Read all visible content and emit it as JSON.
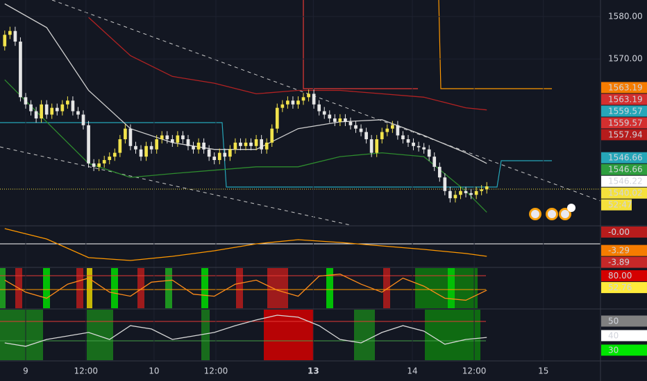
{
  "chart_data": [
    {
      "type": "candlestick",
      "x": [
        -4,
        -3,
        -2,
        -1,
        0,
        1,
        2,
        3,
        4,
        5,
        6,
        7,
        8,
        9,
        10,
        11,
        12,
        13,
        14,
        15,
        16,
        17,
        18,
        19,
        20,
        21,
        22,
        23,
        24,
        25,
        26,
        27,
        28,
        29,
        30,
        31,
        32,
        33,
        34,
        35,
        36,
        37,
        38,
        39,
        40,
        41,
        42,
        43,
        44,
        45,
        46,
        47,
        48,
        49,
        50,
        51,
        52,
        53,
        54,
        55,
        56,
        57,
        58,
        59,
        60,
        61,
        62,
        63,
        64,
        65,
        66,
        67,
        68,
        69,
        70,
        71,
        72,
        73,
        74,
        75,
        76,
        77,
        78,
        79,
        80,
        81,
        82,
        83,
        84,
        85,
        86,
        87,
        88
      ],
      "open": [
        1573,
        1575.7,
        1576.6,
        1574.1,
        1561,
        1559.3,
        1557.7,
        1556,
        1559.3,
        1556.9,
        1558.5,
        1557.7,
        1559.3,
        1560.2,
        1557.7,
        1556.9,
        1554.4,
        1545.4,
        1544.6,
        1545.4,
        1546.2,
        1547,
        1547.9,
        1551.1,
        1553.6,
        1549.5,
        1548.7,
        1547,
        1549.5,
        1548.7,
        1551.1,
        1552,
        1551.1,
        1550.3,
        1552,
        1551.1,
        1549.5,
        1548.7,
        1550.3,
        1548.7,
        1547,
        1546.2,
        1547.9,
        1547,
        1548.7,
        1550.3,
        1549.5,
        1550.3,
        1549.5,
        1551.1,
        1548.7,
        1550.3,
        1553.6,
        1558.5,
        1559.3,
        1560.2,
        1559.3,
        1560.2,
        1561,
        1561.8,
        1559.3,
        1557.7,
        1556.9,
        1556,
        1555.2,
        1556,
        1555.2,
        1554.4,
        1553.6,
        1552.8,
        1551.1,
        1547.9,
        1551.1,
        1552.8,
        1553.6,
        1554.4,
        1552,
        1551.1,
        1550.3,
        1549.5,
        1549.2,
        1548.7,
        1547,
        1544.6,
        1542.1,
        1538.9,
        1537.2,
        1538,
        1538.9,
        1538.4,
        1538,
        1538.9,
        1539.3
      ],
      "high": [
        1576.7,
        1577.6,
        1577.6,
        1575.1,
        1562,
        1560.3,
        1558.7,
        1560.3,
        1560.3,
        1559.5,
        1559.5,
        1560.3,
        1561.2,
        1561.2,
        1558.7,
        1557.9,
        1555.4,
        1546.4,
        1546.4,
        1547.2,
        1548,
        1548.9,
        1552.1,
        1554.6,
        1554.6,
        1550.5,
        1549.7,
        1550.5,
        1550.5,
        1552.1,
        1553,
        1553,
        1552.1,
        1553,
        1553,
        1552.1,
        1550.5,
        1551.3,
        1551.3,
        1549.7,
        1548,
        1548.9,
        1548.9,
        1549.7,
        1551.3,
        1551.3,
        1551.3,
        1551.3,
        1552.1,
        1552.1,
        1551.3,
        1554.6,
        1559.5,
        1560.3,
        1561.2,
        1561.2,
        1561.2,
        1562,
        1562.8,
        1562.8,
        1560.3,
        1558.7,
        1557.9,
        1557,
        1557,
        1557,
        1556.2,
        1555.4,
        1554.6,
        1553.8,
        1552.1,
        1552.1,
        1553.8,
        1554.6,
        1555.4,
        1555.4,
        1553,
        1552.1,
        1551.3,
        1550.5,
        1550.2,
        1549.7,
        1548,
        1545.6,
        1543.1,
        1539.9,
        1539,
        1539.9,
        1539.9,
        1539.4,
        1539.9,
        1540.3,
        1541
      ],
      "low": [
        1572,
        1574.7,
        1573.1,
        1560,
        1558.3,
        1556.7,
        1555,
        1555,
        1555.9,
        1555.9,
        1556.7,
        1556.7,
        1558.3,
        1556.7,
        1555.9,
        1553.4,
        1544.4,
        1543.6,
        1543.6,
        1544.4,
        1545.2,
        1546,
        1546.9,
        1550.1,
        1548.5,
        1547.7,
        1546,
        1546,
        1547.7,
        1547.7,
        1550.1,
        1550.1,
        1549.3,
        1549.3,
        1550.1,
        1548.5,
        1547.7,
        1547.7,
        1547.7,
        1546,
        1545.2,
        1545.2,
        1546,
        1546,
        1547.7,
        1548.5,
        1548.5,
        1548.5,
        1548.5,
        1547.7,
        1547.7,
        1549.3,
        1552.6,
        1557.5,
        1558.3,
        1558.3,
        1558.3,
        1559.2,
        1560,
        1558.3,
        1556.7,
        1555.9,
        1555,
        1554.2,
        1554.2,
        1554.2,
        1553.4,
        1552.6,
        1551.8,
        1550.1,
        1546.9,
        1546.9,
        1550.1,
        1551.8,
        1552.6,
        1551,
        1550.1,
        1549.3,
        1548.5,
        1548.2,
        1547.7,
        1546,
        1543.6,
        1541.1,
        1537.9,
        1536.2,
        1536.2,
        1537,
        1537.4,
        1537,
        1537,
        1537.9,
        1538.3
      ],
      "close": [
        1575.7,
        1576.6,
        1574.1,
        1561,
        1559.3,
        1557.7,
        1556,
        1559.3,
        1556.9,
        1558.5,
        1557.7,
        1559.3,
        1560.2,
        1557.7,
        1556.9,
        1554.4,
        1545.4,
        1544.6,
        1545.4,
        1546.2,
        1547,
        1547.9,
        1551.1,
        1553.6,
        1549.5,
        1548.7,
        1547,
        1549.5,
        1548.7,
        1551.1,
        1552,
        1551.1,
        1550.3,
        1552,
        1551.1,
        1549.5,
        1548.7,
        1550.3,
        1548.7,
        1547,
        1546.2,
        1547.9,
        1547,
        1548.7,
        1550.3,
        1549.5,
        1550.3,
        1549.5,
        1551.1,
        1548.7,
        1550.3,
        1553.6,
        1558.5,
        1559.3,
        1560.2,
        1559.3,
        1560.2,
        1561,
        1561.8,
        1559.3,
        1557.7,
        1556.9,
        1556,
        1555.2,
        1556,
        1555.2,
        1554.4,
        1553.6,
        1552.8,
        1551.1,
        1547.9,
        1551.1,
        1552.8,
        1553.6,
        1554.4,
        1552,
        1551.1,
        1550.3,
        1549.5,
        1549.2,
        1548.7,
        1547,
        1544.6,
        1542.1,
        1538.9,
        1537.2,
        1538,
        1538.9,
        1538.4,
        1538,
        1538.9,
        1539.3,
        1540
      ],
      "up_color": "#f2e34c",
      "down_color": "#e6e6e6",
      "series": [
        {
          "color": "#d0d0d0",
          "x": [
            -4,
            4,
            12,
            20,
            28,
            36,
            44,
            52,
            60,
            68,
            76,
            84,
            88
          ],
          "values": [
            1583,
            1577.4,
            1562.6,
            1553.6,
            1550.3,
            1548.7,
            1548.7,
            1553.6,
            1555.2,
            1555.7,
            1552,
            1547.9,
            1545.4
          ]
        },
        {
          "color": "#b22222",
          "x": [
            12,
            20,
            28,
            36,
            44,
            52,
            60,
            68,
            76,
            84,
            88
          ],
          "values": [
            1579.8,
            1570.8,
            1565.9,
            1564.3,
            1561.8,
            1562.6,
            1562.6,
            1561.8,
            1561,
            1558.5,
            1558
          ]
        },
        {
          "color": "#2e8b2e",
          "x": [
            -4,
            4,
            12,
            20,
            28,
            36,
            44,
            52,
            60,
            68,
            76,
            84,
            88
          ],
          "values": [
            1565.1,
            1555.2,
            1545.4,
            1542.1,
            1543,
            1543.8,
            1544.6,
            1544.6,
            1547,
            1547.9,
            1547,
            1538.9,
            1533.9
          ]
        }
      ],
      "xlim": [
        -4.9,
        109.7
      ],
      "xticks": [
        {
          "value": 0,
          "label": "9"
        },
        {
          "value": 11.5,
          "label": "12:00"
        },
        {
          "value": 24.5,
          "label": "10"
        },
        {
          "value": 36.3,
          "label": "12:00"
        },
        {
          "value": 54.9,
          "label": "13"
        },
        {
          "value": 73.8,
          "label": "14"
        },
        {
          "value": 85.6,
          "label": "12:00"
        },
        {
          "value": 98.8,
          "label": "15"
        }
      ],
      "ylim": [
        1530.7,
        1583.9
      ],
      "yticks": [
        {
          "value": 1570,
          "label": "1570.00"
        },
        {
          "value": 1580,
          "label": "1580.00"
        }
      ],
      "grid": true,
      "price_tags": [
        {
          "value": 1563.19,
          "color": "#f57c00"
        },
        {
          "value": 1563.19,
          "color": "#d32f2f"
        },
        {
          "value": 1559.57,
          "color": "#26a6b8"
        },
        {
          "value": 1559.57,
          "color": "#d32f2f"
        },
        {
          "value": 1557.94,
          "color": "#b71c1c"
        },
        {
          "value": 1546.66,
          "color": "#26a6b8"
        },
        {
          "value": 1546.66,
          "color": "#2e9e3e"
        },
        {
          "value": 1546.22,
          "color": "#ffffff"
        },
        {
          "value": 1540.02,
          "color": "#f5e13c"
        }
      ],
      "countdown": "52:47"
    },
    {
      "type": "line",
      "x": [
        -4,
        4,
        12,
        20,
        28,
        36,
        44,
        52,
        60,
        68,
        76,
        84,
        88
      ],
      "series": [
        {
          "color": "#ff9800",
          "values": [
            -0.19,
            -1.64,
            -4.24,
            -4.63,
            -4.05,
            -3.28,
            -2.31,
            -1.73,
            -2.12,
            -2.6,
            -3.09,
            -3.66,
            -4.05
          ]
        }
      ],
      "ylim": [
        -5.5,
        0.1
      ],
      "price_tags": [
        {
          "value": 0,
          "label": "-0.00",
          "color": "#b71c1c"
        },
        {
          "value": -3.29,
          "color": "#f57c00"
        },
        {
          "value": -3.89,
          "color": "#c62828"
        }
      ]
    },
    {
      "type": "line",
      "x": [
        -4,
        0,
        4,
        8,
        12,
        16,
        20,
        24,
        28,
        32,
        36,
        40,
        44,
        48,
        52,
        56,
        60,
        64,
        68,
        72,
        76,
        80,
        84,
        88
      ],
      "series": [
        {
          "color": "#ff8c1a",
          "values": [
            70,
            40,
            25,
            60,
            75,
            40,
            30,
            65,
            70,
            35,
            30,
            60,
            70,
            45,
            30,
            80,
            85,
            60,
            40,
            75,
            55,
            25,
            20,
            45
          ]
        }
      ],
      "ylim": [
        0,
        100
      ],
      "price_tags": [
        {
          "value": 80,
          "label": "80.00",
          "color": "#d50000"
        },
        {
          "value": 52.76,
          "color": "#ffeb3b"
        }
      ]
    },
    {
      "type": "line",
      "x": [
        -4,
        0,
        4,
        8,
        12,
        16,
        20,
        24,
        28,
        32,
        36,
        40,
        44,
        48,
        52,
        56,
        60,
        64,
        68,
        72,
        76,
        80,
        84,
        88
      ],
      "series": [
        {
          "color": "#d8d8d8",
          "values": [
            35.2,
            32.9,
            37.6,
            40,
            42.4,
            37.6,
            47.1,
            44.8,
            37.6,
            40,
            42.4,
            47.1,
            51,
            54.3,
            52.9,
            47.1,
            37.6,
            35.2,
            42.4,
            47.1,
            43.3,
            34.3,
            37.6,
            39
          ]
        }
      ],
      "ylim": [
        23.3,
        58.1
      ],
      "price_tags": [
        {
          "value": 50,
          "color": "#808080"
        },
        {
          "value": 40,
          "color": "#ffffff"
        },
        {
          "value": 30,
          "color": "#00e600"
        }
      ]
    }
  ]
}
